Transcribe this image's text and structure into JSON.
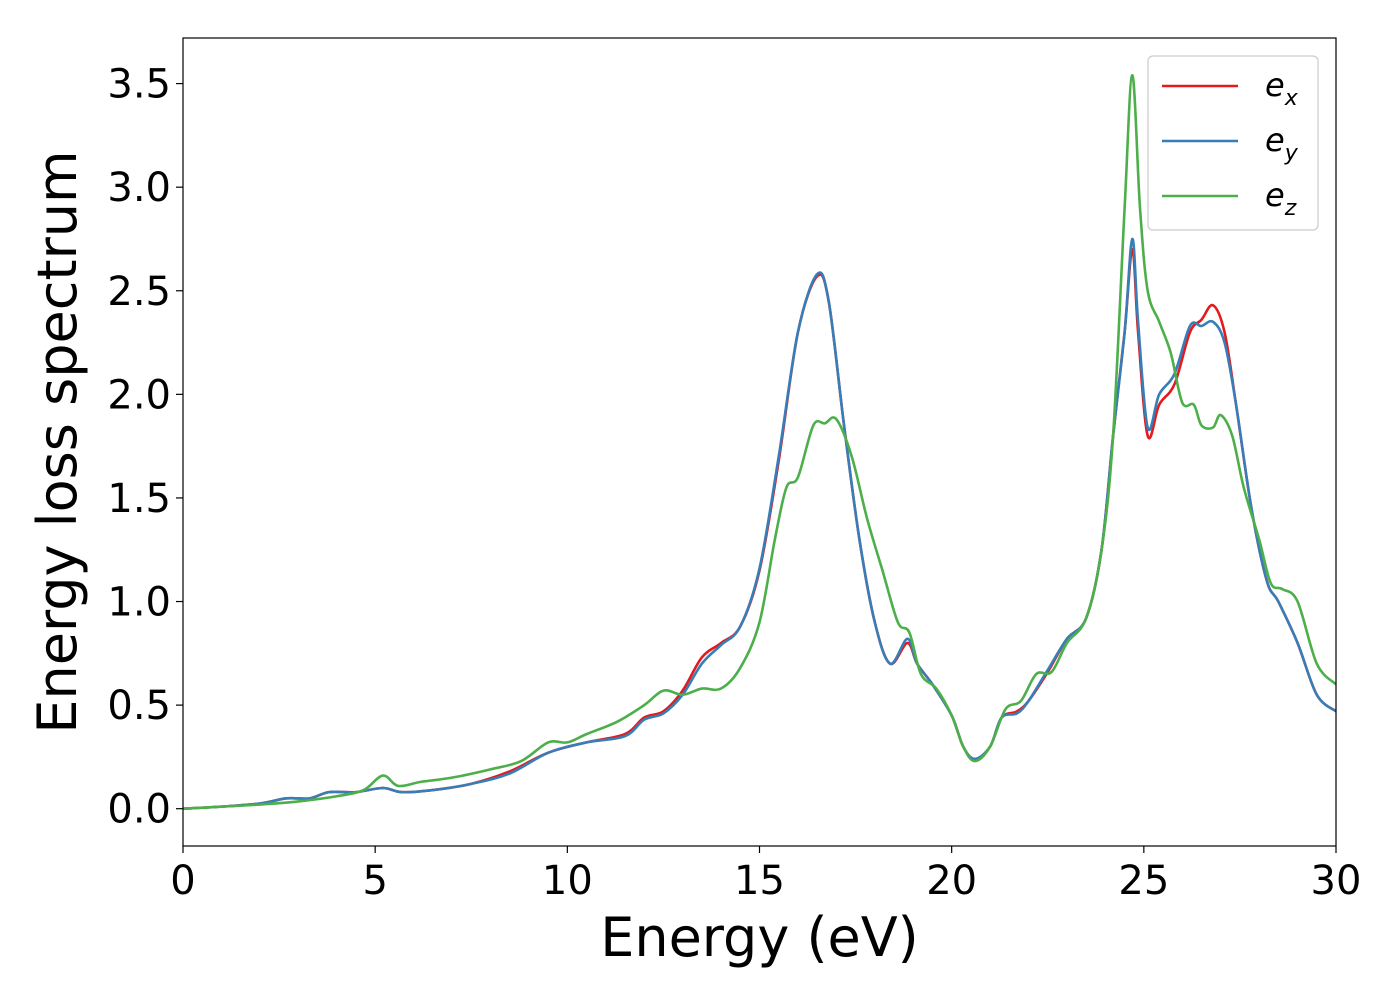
{
  "chart_data": {
    "type": "line",
    "title": "",
    "xlabel": "Energy (eV)",
    "ylabel": "Energy loss spectrum",
    "xlim": [
      0,
      30
    ],
    "ylim": [
      -0.18,
      3.72
    ],
    "xticks": [
      0,
      5,
      10,
      15,
      20,
      25,
      30
    ],
    "xtick_labels": [
      "0",
      "5",
      "10",
      "15",
      "20",
      "25",
      "30"
    ],
    "yticks": [
      0.0,
      0.5,
      1.0,
      1.5,
      2.0,
      2.5,
      3.0,
      3.5
    ],
    "ytick_labels": [
      "0.0",
      "0.5",
      "1.0",
      "1.5",
      "2.0",
      "2.5",
      "3.0",
      "3.5"
    ],
    "grid": false,
    "legend_position": "top-right",
    "series": [
      {
        "name": "e_x",
        "legend_main": "e",
        "legend_sub": "x",
        "color": "#e41a1c",
        "points": [
          [
            0,
            0
          ],
          [
            1,
            0.01
          ],
          [
            2,
            0.025
          ],
          [
            2.7,
            0.05
          ],
          [
            3.3,
            0.05
          ],
          [
            3.8,
            0.08
          ],
          [
            4.5,
            0.08
          ],
          [
            5.2,
            0.1
          ],
          [
            5.7,
            0.08
          ],
          [
            6.5,
            0.09
          ],
          [
            7.5,
            0.12
          ],
          [
            8.5,
            0.18
          ],
          [
            9.5,
            0.27
          ],
          [
            10.5,
            0.32
          ],
          [
            11.5,
            0.36
          ],
          [
            12,
            0.44
          ],
          [
            12.5,
            0.47
          ],
          [
            13,
            0.57
          ],
          [
            13.5,
            0.73
          ],
          [
            14,
            0.8
          ],
          [
            14.5,
            0.88
          ],
          [
            15,
            1.15
          ],
          [
            15.5,
            1.68
          ],
          [
            16,
            2.3
          ],
          [
            16.5,
            2.57
          ],
          [
            16.8,
            2.45
          ],
          [
            17.2,
            1.85
          ],
          [
            17.6,
            1.3
          ],
          [
            18,
            0.9
          ],
          [
            18.4,
            0.7
          ],
          [
            18.85,
            0.8
          ],
          [
            19.1,
            0.7
          ],
          [
            19.5,
            0.6
          ],
          [
            20,
            0.45
          ],
          [
            20.3,
            0.3
          ],
          [
            20.6,
            0.24
          ],
          [
            21,
            0.3
          ],
          [
            21.3,
            0.44
          ],
          [
            21.7,
            0.47
          ],
          [
            22,
            0.52
          ],
          [
            22.5,
            0.66
          ],
          [
            23,
            0.82
          ],
          [
            23.5,
            0.92
          ],
          [
            23.9,
            1.25
          ],
          [
            24.2,
            1.8
          ],
          [
            24.5,
            2.3
          ],
          [
            24.7,
            2.7
          ],
          [
            24.85,
            2.3
          ],
          [
            25.1,
            1.8
          ],
          [
            25.4,
            1.95
          ],
          [
            25.8,
            2.05
          ],
          [
            26.2,
            2.3
          ],
          [
            26.5,
            2.36
          ],
          [
            26.8,
            2.43
          ],
          [
            27.1,
            2.3
          ],
          [
            27.4,
            1.95
          ],
          [
            27.8,
            1.45
          ],
          [
            28.2,
            1.1
          ],
          [
            28.5,
            1.0
          ],
          [
            29,
            0.8
          ],
          [
            29.5,
            0.55
          ],
          [
            30,
            0.47
          ]
        ]
      },
      {
        "name": "e_y",
        "legend_main": "e",
        "legend_sub": "y",
        "color": "#377eb8",
        "points": [
          [
            0,
            0
          ],
          [
            1,
            0.01
          ],
          [
            2,
            0.025
          ],
          [
            2.7,
            0.05
          ],
          [
            3.3,
            0.05
          ],
          [
            3.8,
            0.08
          ],
          [
            4.5,
            0.08
          ],
          [
            5.2,
            0.1
          ],
          [
            5.7,
            0.08
          ],
          [
            6.5,
            0.09
          ],
          [
            7.5,
            0.12
          ],
          [
            8.5,
            0.17
          ],
          [
            9.5,
            0.27
          ],
          [
            10.5,
            0.32
          ],
          [
            11.5,
            0.35
          ],
          [
            12,
            0.43
          ],
          [
            12.5,
            0.46
          ],
          [
            13,
            0.55
          ],
          [
            13.5,
            0.7
          ],
          [
            14,
            0.79
          ],
          [
            14.5,
            0.88
          ],
          [
            15,
            1.16
          ],
          [
            15.5,
            1.7
          ],
          [
            16,
            2.3
          ],
          [
            16.5,
            2.58
          ],
          [
            16.8,
            2.45
          ],
          [
            17.2,
            1.85
          ],
          [
            17.6,
            1.3
          ],
          [
            18,
            0.9
          ],
          [
            18.4,
            0.7
          ],
          [
            18.85,
            0.82
          ],
          [
            19.1,
            0.7
          ],
          [
            19.5,
            0.6
          ],
          [
            20,
            0.45
          ],
          [
            20.3,
            0.3
          ],
          [
            20.6,
            0.24
          ],
          [
            21,
            0.3
          ],
          [
            21.3,
            0.44
          ],
          [
            21.7,
            0.46
          ],
          [
            22,
            0.52
          ],
          [
            22.5,
            0.67
          ],
          [
            23,
            0.82
          ],
          [
            23.5,
            0.92
          ],
          [
            23.9,
            1.25
          ],
          [
            24.2,
            1.8
          ],
          [
            24.5,
            2.3
          ],
          [
            24.7,
            2.75
          ],
          [
            24.85,
            2.35
          ],
          [
            25.1,
            1.84
          ],
          [
            25.4,
            2.0
          ],
          [
            25.8,
            2.1
          ],
          [
            26.2,
            2.33
          ],
          [
            26.5,
            2.33
          ],
          [
            26.8,
            2.35
          ],
          [
            27.1,
            2.25
          ],
          [
            27.4,
            1.95
          ],
          [
            27.8,
            1.45
          ],
          [
            28.2,
            1.1
          ],
          [
            28.5,
            1.0
          ],
          [
            29,
            0.8
          ],
          [
            29.5,
            0.55
          ],
          [
            30,
            0.47
          ]
        ]
      },
      {
        "name": "e_z",
        "legend_main": "e",
        "legend_sub": "z",
        "color": "#4daf4a",
        "points": [
          [
            0,
            0
          ],
          [
            1,
            0.01
          ],
          [
            2,
            0.02
          ],
          [
            3,
            0.035
          ],
          [
            4,
            0.06
          ],
          [
            4.7,
            0.09
          ],
          [
            5.2,
            0.16
          ],
          [
            5.6,
            0.11
          ],
          [
            6.2,
            0.13
          ],
          [
            7,
            0.15
          ],
          [
            8,
            0.19
          ],
          [
            8.8,
            0.23
          ],
          [
            9.5,
            0.32
          ],
          [
            10,
            0.32
          ],
          [
            10.5,
            0.36
          ],
          [
            11.3,
            0.42
          ],
          [
            12,
            0.5
          ],
          [
            12.5,
            0.57
          ],
          [
            13,
            0.55
          ],
          [
            13.5,
            0.58
          ],
          [
            14,
            0.58
          ],
          [
            14.5,
            0.68
          ],
          [
            15,
            0.9
          ],
          [
            15.4,
            1.3
          ],
          [
            15.7,
            1.55
          ],
          [
            16,
            1.6
          ],
          [
            16.4,
            1.85
          ],
          [
            16.7,
            1.86
          ],
          [
            17,
            1.88
          ],
          [
            17.4,
            1.7
          ],
          [
            17.8,
            1.4
          ],
          [
            18.2,
            1.15
          ],
          [
            18.6,
            0.9
          ],
          [
            18.9,
            0.85
          ],
          [
            19.2,
            0.65
          ],
          [
            19.6,
            0.58
          ],
          [
            20,
            0.45
          ],
          [
            20.3,
            0.3
          ],
          [
            20.6,
            0.23
          ],
          [
            21,
            0.3
          ],
          [
            21.4,
            0.48
          ],
          [
            21.8,
            0.52
          ],
          [
            22.2,
            0.65
          ],
          [
            22.6,
            0.66
          ],
          [
            23,
            0.8
          ],
          [
            23.5,
            0.92
          ],
          [
            23.9,
            1.25
          ],
          [
            24.2,
            1.8
          ],
          [
            24.5,
            2.9
          ],
          [
            24.7,
            3.54
          ],
          [
            24.9,
            2.9
          ],
          [
            25.1,
            2.5
          ],
          [
            25.4,
            2.35
          ],
          [
            25.7,
            2.2
          ],
          [
            26,
            1.96
          ],
          [
            26.3,
            1.95
          ],
          [
            26.5,
            1.85
          ],
          [
            26.8,
            1.84
          ],
          [
            27,
            1.9
          ],
          [
            27.3,
            1.8
          ],
          [
            27.6,
            1.55
          ],
          [
            28,
            1.3
          ],
          [
            28.3,
            1.09
          ],
          [
            28.6,
            1.06
          ],
          [
            29,
            1.0
          ],
          [
            29.5,
            0.7
          ],
          [
            30,
            0.6
          ]
        ]
      }
    ]
  }
}
